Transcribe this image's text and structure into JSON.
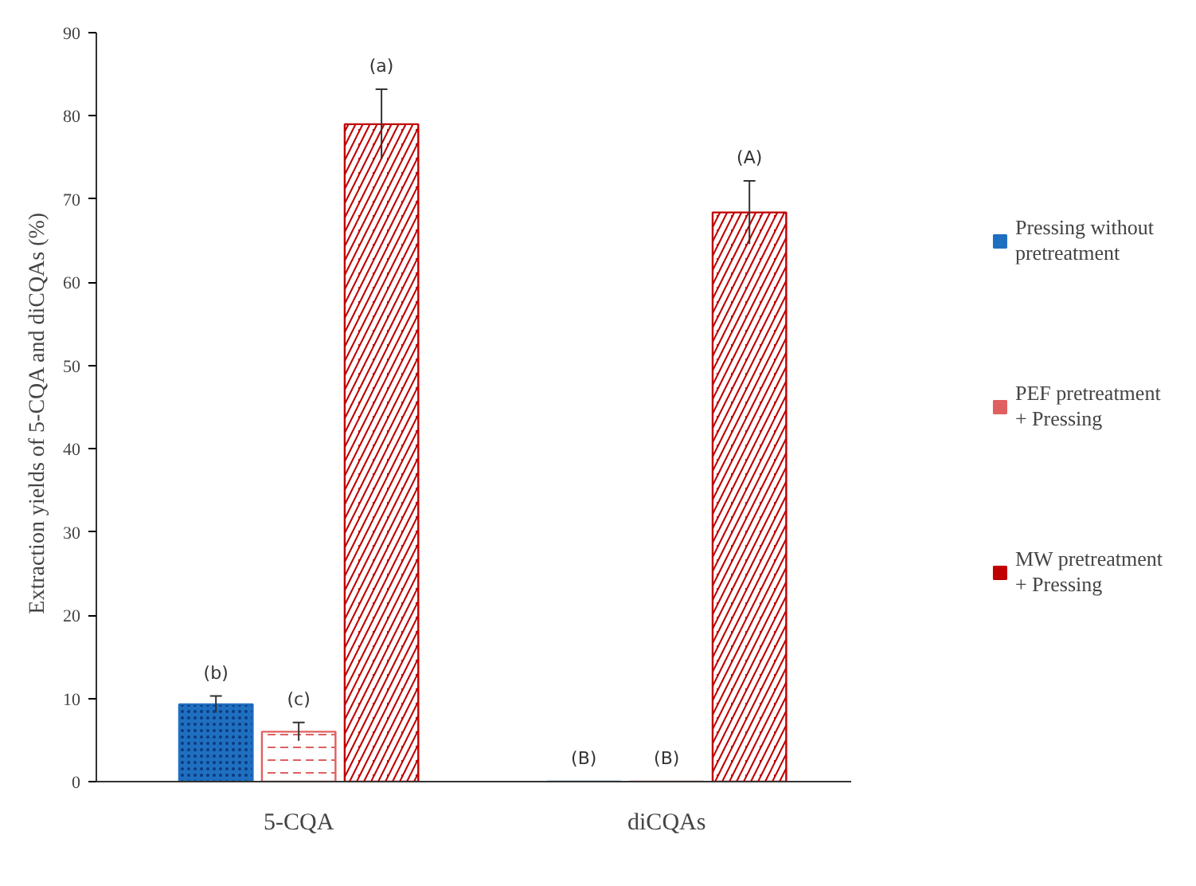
{
  "chart_data": {
    "type": "bar",
    "ylabel": "Extraction  yields  of 5-CQA and diCQAs (%)",
    "categories": [
      "5-CQA",
      "diCQAs"
    ],
    "series": [
      {
        "name": "Pressing without pretreatment",
        "color": "#1f6fc0",
        "values": [
          9.3,
          0
        ],
        "errors": [
          1.0,
          null
        ],
        "value_labels": [
          "(b)",
          "(B)"
        ]
      },
      {
        "name": "PEF pretreatment + Pressing",
        "color": "#e06060",
        "values": [
          6.0,
          0
        ],
        "errors": [
          1.1,
          null
        ],
        "value_labels": [
          "(c)",
          "(B)"
        ]
      },
      {
        "name": "MW pretreatment + Pressing",
        "color": "#c00000",
        "values": [
          79.0,
          68.4
        ],
        "errors": [
          4.2,
          3.8
        ],
        "value_labels": [
          "(a)",
          "(A)"
        ]
      }
    ],
    "ylim": [
      0,
      90
    ],
    "yticks": [
      0,
      10,
      20,
      30,
      40,
      50,
      60,
      70,
      80,
      90
    ],
    "grid": false,
    "legend": "right"
  }
}
